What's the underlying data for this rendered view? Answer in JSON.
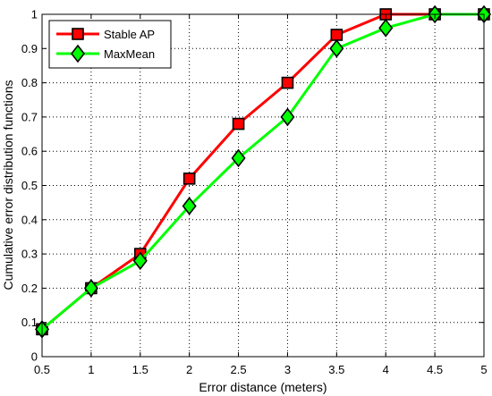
{
  "chart_data": {
    "type": "line",
    "title": "",
    "xlabel": "Error distance (meters)",
    "ylabel": "Cumulative error distribution functions",
    "xlim": [
      0.5,
      5
    ],
    "ylim": [
      0,
      1
    ],
    "xticks": [
      "0.5",
      "1",
      "1.5",
      "2",
      "2.5",
      "3",
      "3.5",
      "4",
      "4.5",
      "5"
    ],
    "yticks": [
      "0",
      "0.1",
      "0.2",
      "0.3",
      "0.4",
      "0.5",
      "0.6",
      "0.7",
      "0.8",
      "0.9",
      "1"
    ],
    "grid": true,
    "legend_position": "top-left",
    "series": [
      {
        "name": "Stable AP",
        "color": "#ff0000",
        "marker": "square",
        "x": [
          0.5,
          1,
          1.5,
          2,
          2.5,
          3,
          3.5,
          4,
          4.5,
          5
        ],
        "y": [
          0.08,
          0.2,
          0.3,
          0.52,
          0.68,
          0.8,
          0.94,
          1.0,
          1.0,
          1.0
        ]
      },
      {
        "name": "MaxMean",
        "color": "#00ff00",
        "marker": "diamond",
        "x": [
          0.5,
          1,
          1.5,
          2,
          2.5,
          3,
          3.5,
          4,
          4.5,
          5
        ],
        "y": [
          0.08,
          0.2,
          0.28,
          0.44,
          0.58,
          0.7,
          0.9,
          0.96,
          1.0,
          1.0
        ]
      }
    ]
  }
}
